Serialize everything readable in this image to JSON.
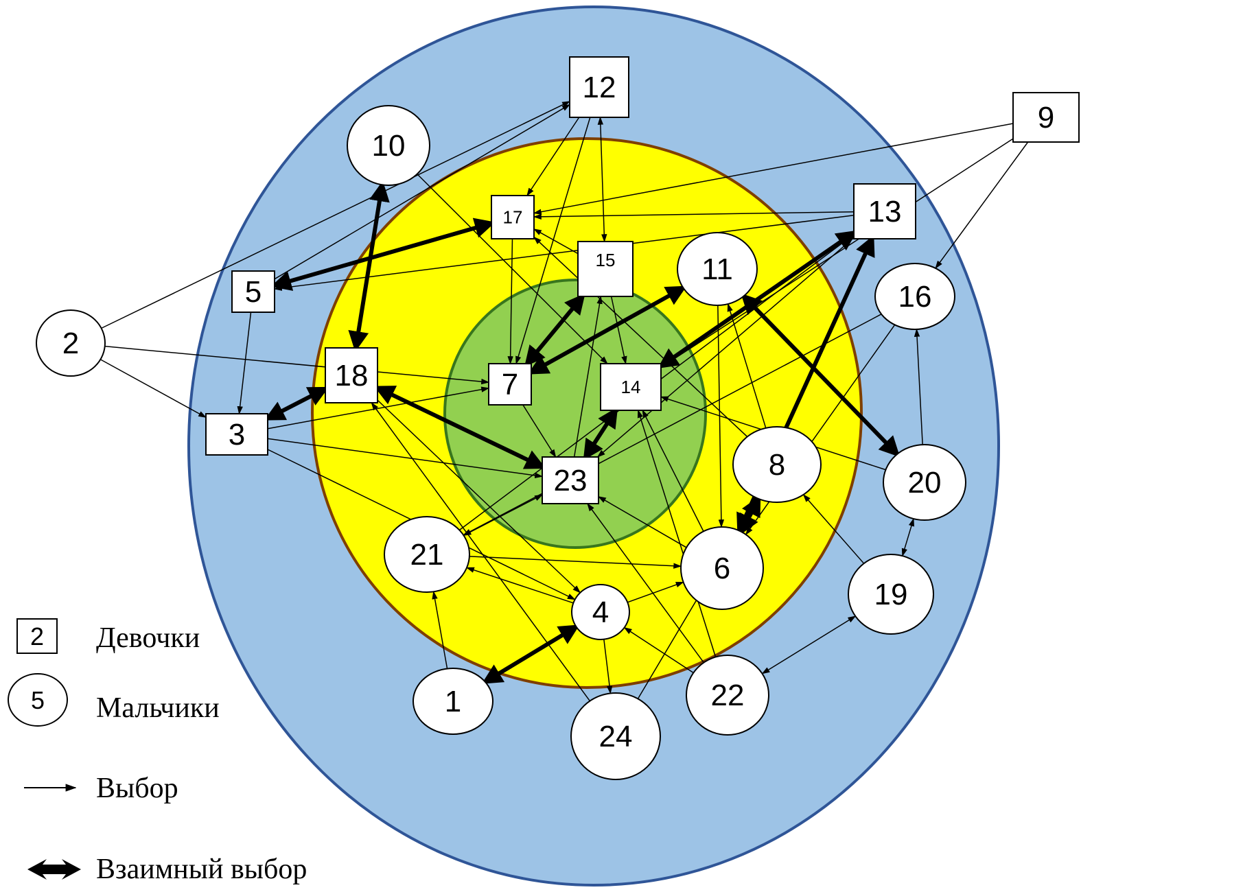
{
  "colors": {
    "outer_zone": "#9DC3E6",
    "middle_zone": "#FFFF00",
    "inner_zone": "#92D050",
    "ring_stroke": "#7F3F00",
    "node_fill": "#FFFFFF",
    "line": "#000000"
  },
  "zones": [
    "outer",
    "middle",
    "inner"
  ],
  "nodes": [
    {
      "id": "1",
      "label": "1",
      "shape": "circle"
    },
    {
      "id": "2",
      "label": "2",
      "shape": "circle"
    },
    {
      "id": "3",
      "label": "3",
      "shape": "square"
    },
    {
      "id": "4",
      "label": "4",
      "shape": "circle"
    },
    {
      "id": "5",
      "label": "5",
      "shape": "square"
    },
    {
      "id": "6",
      "label": "6",
      "shape": "circle"
    },
    {
      "id": "7",
      "label": "7",
      "shape": "square"
    },
    {
      "id": "8",
      "label": "8",
      "shape": "circle"
    },
    {
      "id": "9",
      "label": "9",
      "shape": "square"
    },
    {
      "id": "10",
      "label": "10",
      "shape": "circle"
    },
    {
      "id": "11",
      "label": "11",
      "shape": "circle"
    },
    {
      "id": "12",
      "label": "12",
      "shape": "square"
    },
    {
      "id": "13",
      "label": "13",
      "shape": "square"
    },
    {
      "id": "14",
      "label": "14",
      "shape": "square"
    },
    {
      "id": "15",
      "label": "15",
      "shape": "square"
    },
    {
      "id": "16",
      "label": "16",
      "shape": "circle"
    },
    {
      "id": "17",
      "label": "17",
      "shape": "square"
    },
    {
      "id": "18",
      "label": "18",
      "shape": "square"
    },
    {
      "id": "19",
      "label": "19",
      "shape": "circle"
    },
    {
      "id": "20",
      "label": "20",
      "shape": "circle"
    },
    {
      "id": "21",
      "label": "21",
      "shape": "circle"
    },
    {
      "id": "22",
      "label": "22",
      "shape": "circle"
    },
    {
      "id": "23",
      "label": "23",
      "shape": "square"
    },
    {
      "id": "24",
      "label": "24",
      "shape": "circle"
    }
  ],
  "edges": [
    {
      "from": "2",
      "to": "12",
      "mutual": false
    },
    {
      "from": "2",
      "to": "3",
      "mutual": false
    },
    {
      "from": "2",
      "to": "7",
      "mutual": false
    },
    {
      "from": "5",
      "to": "12",
      "mutual": false
    },
    {
      "from": "5",
      "to": "3",
      "mutual": false
    },
    {
      "from": "13",
      "to": "5",
      "mutual": false
    },
    {
      "from": "12",
      "to": "17",
      "mutual": false
    },
    {
      "from": "12",
      "to": "7",
      "mutual": false
    },
    {
      "from": "12",
      "to": "15",
      "mutual": true,
      "thick": false
    },
    {
      "from": "9",
      "to": "17",
      "mutual": false
    },
    {
      "from": "9",
      "to": "16",
      "mutual": false
    },
    {
      "from": "9",
      "to": "14",
      "mutual": false
    },
    {
      "from": "13",
      "to": "17",
      "mutual": false
    },
    {
      "from": "13",
      "to": "23",
      "mutual": false
    },
    {
      "from": "15",
      "to": "17",
      "mutual": false
    },
    {
      "from": "15",
      "to": "14",
      "mutual": false
    },
    {
      "from": "17",
      "to": "7",
      "mutual": false
    },
    {
      "from": "3",
      "to": "7",
      "mutual": false
    },
    {
      "from": "3",
      "to": "23",
      "mutual": false
    },
    {
      "from": "3",
      "to": "4",
      "mutual": false
    },
    {
      "from": "7",
      "to": "23",
      "mutual": false
    },
    {
      "from": "23",
      "to": "15",
      "mutual": false
    },
    {
      "from": "11",
      "to": "6",
      "mutual": false
    },
    {
      "from": "8",
      "to": "11",
      "mutual": false
    },
    {
      "from": "8",
      "to": "17",
      "mutual": false
    },
    {
      "from": "20",
      "to": "16",
      "mutual": false
    },
    {
      "from": "20",
      "to": "14",
      "mutual": false
    },
    {
      "from": "19",
      "to": "8",
      "mutual": false
    },
    {
      "from": "19",
      "to": "20",
      "mutual": true,
      "thick": false
    },
    {
      "from": "19",
      "to": "22",
      "mutual": true,
      "thick": false
    },
    {
      "from": "21",
      "to": "23",
      "mutual": true,
      "thick": false
    },
    {
      "from": "21",
      "to": "6",
      "mutual": false
    },
    {
      "from": "21",
      "to": "13",
      "mutual": false
    },
    {
      "from": "1",
      "to": "21",
      "mutual": false
    },
    {
      "from": "4",
      "to": "21",
      "mutual": false
    },
    {
      "from": "4",
      "to": "24",
      "mutual": false
    },
    {
      "from": "4",
      "to": "6",
      "mutual": false
    },
    {
      "from": "22",
      "to": "4",
      "mutual": false
    },
    {
      "from": "22",
      "to": "14",
      "mutual": false
    },
    {
      "from": "22",
      "to": "23",
      "mutual": false
    },
    {
      "from": "24",
      "to": "18",
      "mutual": false
    },
    {
      "from": "24",
      "to": "8",
      "mutual": false
    },
    {
      "from": "6",
      "to": "23",
      "mutual": false
    },
    {
      "from": "6",
      "to": "14",
      "mutual": false
    },
    {
      "from": "16",
      "to": "6",
      "mutual": false
    },
    {
      "from": "16",
      "to": "21",
      "mutual": false
    },
    {
      "from": "18",
      "to": "4",
      "mutual": false
    },
    {
      "from": "10",
      "to": "14",
      "mutual": false
    },
    {
      "from": "10",
      "to": "18",
      "mutual": true,
      "thick": true
    },
    {
      "from": "5",
      "to": "17",
      "mutual": true,
      "thick": true
    },
    {
      "from": "3",
      "to": "18",
      "mutual": true,
      "thick": true
    },
    {
      "from": "18",
      "to": "23",
      "mutual": true,
      "thick": true
    },
    {
      "from": "7",
      "to": "15",
      "mutual": true,
      "thick": true
    },
    {
      "from": "7",
      "to": "11",
      "mutual": true,
      "thick": true
    },
    {
      "from": "14",
      "to": "23",
      "mutual": true,
      "thick": true
    },
    {
      "from": "14",
      "to": "13",
      "mutual": true,
      "thick": true
    },
    {
      "from": "13",
      "to": "6",
      "mutual": true,
      "thick": true
    },
    {
      "from": "11",
      "to": "20",
      "mutual": true,
      "thick": true
    },
    {
      "from": "8",
      "to": "6",
      "mutual": true,
      "thick": true
    },
    {
      "from": "1",
      "to": "4",
      "mutual": true,
      "thick": true
    }
  ],
  "legend": {
    "girls_sample": "2",
    "girls_label": "Девочки",
    "boys_sample": "5",
    "boys_label": "Мальчики",
    "choice_label": "Выбор",
    "mutual_label": "Взаимный выбор"
  }
}
